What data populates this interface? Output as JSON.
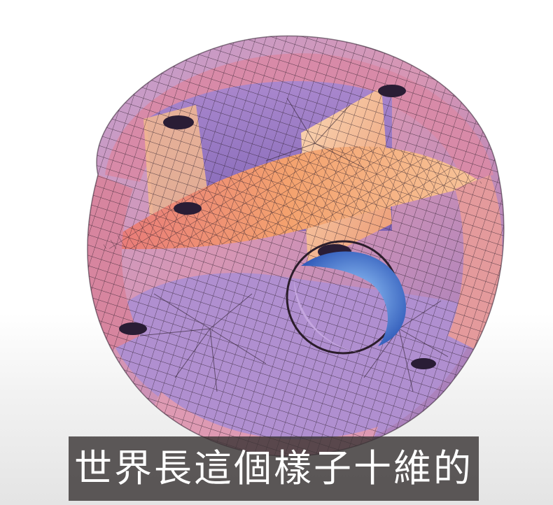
{
  "caption": {
    "text": "世界長這個樣子十維的"
  },
  "image": {
    "subject": "calabi-yau-manifold",
    "colors": {
      "surface_violet": "#8e72c0",
      "surface_pink": "#e39cb4",
      "surface_orange": "#f5a86a",
      "surface_light_peach": "#f6c9a4",
      "hole_blue": "#3f6fc9",
      "mesh_line": "#2b1d2b",
      "background": "#ffffff",
      "caption_box": "#373232",
      "caption_text": "#ffffff"
    }
  }
}
